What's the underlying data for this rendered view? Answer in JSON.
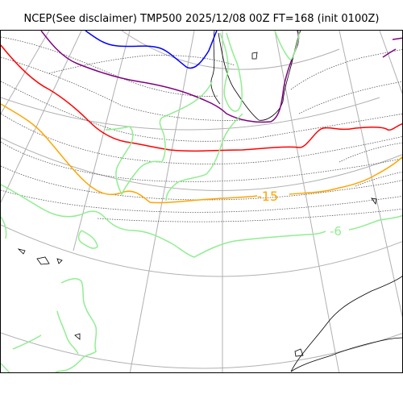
{
  "title": "NCEP(See disclaimer) TMP500 2025/12/08 00Z FT=168 (init 0100Z)",
  "contour_labels": {
    "label_minus15": "-15",
    "label_minus6": "-6"
  },
  "colors": {
    "coastline": "#000000",
    "graticule": "#b0b0b0",
    "isotherm_minus6": "#90ee90",
    "isotherm_minus15": "#ffa500",
    "isotherm_red": "#ff0000",
    "isotherm_purple": "#800080",
    "isotherm_blue": "#0000ff",
    "height_contours": "#555555"
  }
}
